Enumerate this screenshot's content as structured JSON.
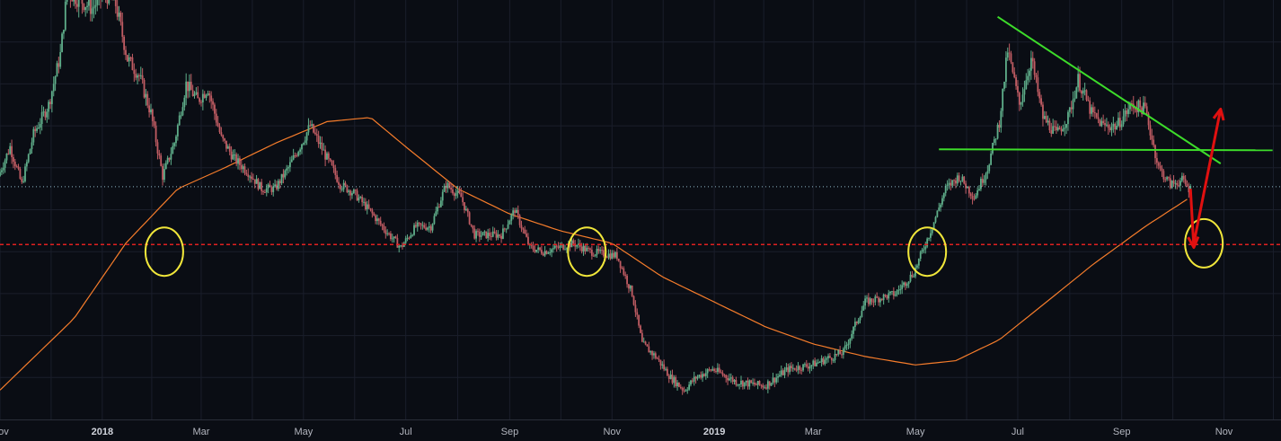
{
  "chart_data": {
    "type": "candlestick",
    "title": "",
    "xlabel": "",
    "ylabel": "",
    "grid": true,
    "x_tick_labels": [
      "Nov",
      "2018",
      "Mar",
      "May",
      "Jul",
      "Sep",
      "Nov",
      "2019",
      "Mar",
      "May",
      "Jul",
      "Sep",
      "Nov"
    ],
    "x_tick_dates": [
      "2017-11-01",
      "2018-01-01",
      "2018-03-01",
      "2018-05-01",
      "2018-07-01",
      "2018-09-01",
      "2018-11-01",
      "2019-01-01",
      "2019-03-01",
      "2019-05-01",
      "2019-07-01",
      "2019-09-01",
      "2019-11-01"
    ],
    "x_range": [
      "2017-11-01",
      "2019-12-05"
    ],
    "y_range_relative": [
      0,
      1
    ],
    "y_scale": "relative (axis prices not shown)",
    "price_path": [
      [
        "2017-11-01",
        0.58
      ],
      [
        "2017-11-08",
        0.65
      ],
      [
        "2017-11-15",
        0.56
      ],
      [
        "2017-11-22",
        0.68
      ],
      [
        "2017-12-01",
        0.75
      ],
      [
        "2017-12-08",
        0.87
      ],
      [
        "2017-12-12",
        1.02
      ],
      [
        "2017-12-20",
        1.0
      ],
      [
        "2017-12-27",
        0.98
      ],
      [
        "2018-01-03",
        1.02
      ],
      [
        "2018-01-10",
        0.99
      ],
      [
        "2018-01-17",
        0.86
      ],
      [
        "2018-01-24",
        0.82
      ],
      [
        "2018-01-31",
        0.73
      ],
      [
        "2018-02-07",
        0.58
      ],
      [
        "2018-02-14",
        0.66
      ],
      [
        "2018-02-21",
        0.8
      ],
      [
        "2018-02-28",
        0.76
      ],
      [
        "2018-03-06",
        0.79
      ],
      [
        "2018-03-14",
        0.67
      ],
      [
        "2018-03-22",
        0.62
      ],
      [
        "2018-03-30",
        0.59
      ],
      [
        "2018-04-07",
        0.55
      ],
      [
        "2018-04-15",
        0.55
      ],
      [
        "2018-04-23",
        0.6
      ],
      [
        "2018-05-01",
        0.66
      ],
      [
        "2018-05-06",
        0.7
      ],
      [
        "2018-05-15",
        0.63
      ],
      [
        "2018-05-24",
        0.56
      ],
      [
        "2018-06-01",
        0.54
      ],
      [
        "2018-06-10",
        0.5
      ],
      [
        "2018-06-20",
        0.45
      ],
      [
        "2018-06-29",
        0.41
      ],
      [
        "2018-07-08",
        0.46
      ],
      [
        "2018-07-17",
        0.46
      ],
      [
        "2018-07-26",
        0.56
      ],
      [
        "2018-08-04",
        0.53
      ],
      [
        "2018-08-12",
        0.44
      ],
      [
        "2018-08-20",
        0.44
      ],
      [
        "2018-08-28",
        0.44
      ],
      [
        "2018-09-05",
        0.5
      ],
      [
        "2018-09-14",
        0.41
      ],
      [
        "2018-09-22",
        0.4
      ],
      [
        "2018-10-01",
        0.41
      ],
      [
        "2018-10-10",
        0.42
      ],
      [
        "2018-10-20",
        0.4
      ],
      [
        "2018-11-05",
        0.39
      ],
      [
        "2018-11-14",
        0.3
      ],
      [
        "2018-11-20",
        0.18
      ],
      [
        "2018-11-28",
        0.15
      ],
      [
        "2018-12-07",
        0.1
      ],
      [
        "2018-12-15",
        0.07
      ],
      [
        "2018-12-22",
        0.1
      ],
      [
        "2019-01-01",
        0.12
      ],
      [
        "2019-01-15",
        0.09
      ],
      [
        "2019-02-01",
        0.08
      ],
      [
        "2019-02-15",
        0.12
      ],
      [
        "2019-03-01",
        0.13
      ],
      [
        "2019-03-20",
        0.16
      ],
      [
        "2019-04-02",
        0.28
      ],
      [
        "2019-04-20",
        0.3
      ],
      [
        "2019-05-01",
        0.35
      ],
      [
        "2019-05-12",
        0.46
      ],
      [
        "2019-05-20",
        0.55
      ],
      [
        "2019-05-28",
        0.58
      ],
      [
        "2019-06-06",
        0.53
      ],
      [
        "2019-06-14",
        0.6
      ],
      [
        "2019-06-21",
        0.71
      ],
      [
        "2019-06-26",
        0.88
      ],
      [
        "2019-07-03",
        0.75
      ],
      [
        "2019-07-10",
        0.86
      ],
      [
        "2019-07-17",
        0.72
      ],
      [
        "2019-07-25",
        0.68
      ],
      [
        "2019-08-01",
        0.72
      ],
      [
        "2019-08-07",
        0.81
      ],
      [
        "2019-08-15",
        0.73
      ],
      [
        "2019-08-22",
        0.7
      ],
      [
        "2019-08-30",
        0.7
      ],
      [
        "2019-09-08",
        0.75
      ],
      [
        "2019-09-16",
        0.74
      ],
      [
        "2019-09-24",
        0.6
      ],
      [
        "2019-10-01",
        0.56
      ],
      [
        "2019-10-08",
        0.57
      ],
      [
        "2019-10-12",
        0.55
      ]
    ],
    "moving_average": {
      "color": "#f57c2b",
      "path": [
        [
          "2017-11-01",
          0.07
        ],
        [
          "2017-12-15",
          0.24
        ],
        [
          "2018-01-15",
          0.42
        ],
        [
          "2018-02-15",
          0.55
        ],
        [
          "2018-03-15",
          0.6
        ],
        [
          "2018-04-15",
          0.66
        ],
        [
          "2018-05-15",
          0.71
        ],
        [
          "2018-06-10",
          0.72
        ],
        [
          "2018-07-01",
          0.65
        ],
        [
          "2018-08-01",
          0.55
        ],
        [
          "2018-09-01",
          0.49
        ],
        [
          "2018-10-01",
          0.45
        ],
        [
          "2018-11-01",
          0.42
        ],
        [
          "2018-12-01",
          0.34
        ],
        [
          "2019-01-01",
          0.28
        ],
        [
          "2019-02-01",
          0.22
        ],
        [
          "2019-03-01",
          0.18
        ],
        [
          "2019-04-01",
          0.15
        ],
        [
          "2019-05-01",
          0.13
        ],
        [
          "2019-05-25",
          0.14
        ],
        [
          "2019-06-20",
          0.19
        ],
        [
          "2019-07-15",
          0.27
        ],
        [
          "2019-08-15",
          0.37
        ],
        [
          "2019-09-15",
          0.46
        ],
        [
          "2019-10-12",
          0.53
        ]
      ]
    },
    "current_price_line": {
      "value": 0.555,
      "color": "#8fb8c8",
      "style": "dotted"
    },
    "support_line": {
      "value": 0.417,
      "color": "#e02020",
      "style": "dashed"
    },
    "annotations": {
      "horizontal_resistance": {
        "color": "#3ddc2a",
        "from": "2019-05-15",
        "to": "2019-11-30",
        "value": 0.644
      },
      "descending_trendline": {
        "color": "#3ddc2a",
        "from": [
          "2019-06-19",
          0.96
        ],
        "to": [
          "2019-10-30",
          0.61
        ]
      },
      "circles": [
        {
          "date": "2018-02-07",
          "value": 0.4,
          "color": "#f0e63a"
        },
        {
          "date": "2018-10-17",
          "value": 0.4,
          "color": "#f0e63a"
        },
        {
          "date": "2019-05-08",
          "value": 0.4,
          "color": "#f0e63a"
        },
        {
          "date": "2019-10-20",
          "value": 0.42,
          "color": "#f0e63a"
        }
      ],
      "arrows": [
        {
          "from": [
            "2019-10-12",
            0.55
          ],
          "to": [
            "2019-10-14",
            0.41
          ],
          "color": "#e01010"
        },
        {
          "from": [
            "2019-10-14",
            0.42
          ],
          "to": [
            "2019-10-30",
            0.74
          ],
          "color": "#e01010"
        }
      ]
    },
    "colors": {
      "background": "#0a0d14",
      "grid": "#1a1e2b",
      "candle_up": "#5fae8a",
      "candle_down": "#c05c63",
      "axis_text": "#b2b5be"
    }
  }
}
